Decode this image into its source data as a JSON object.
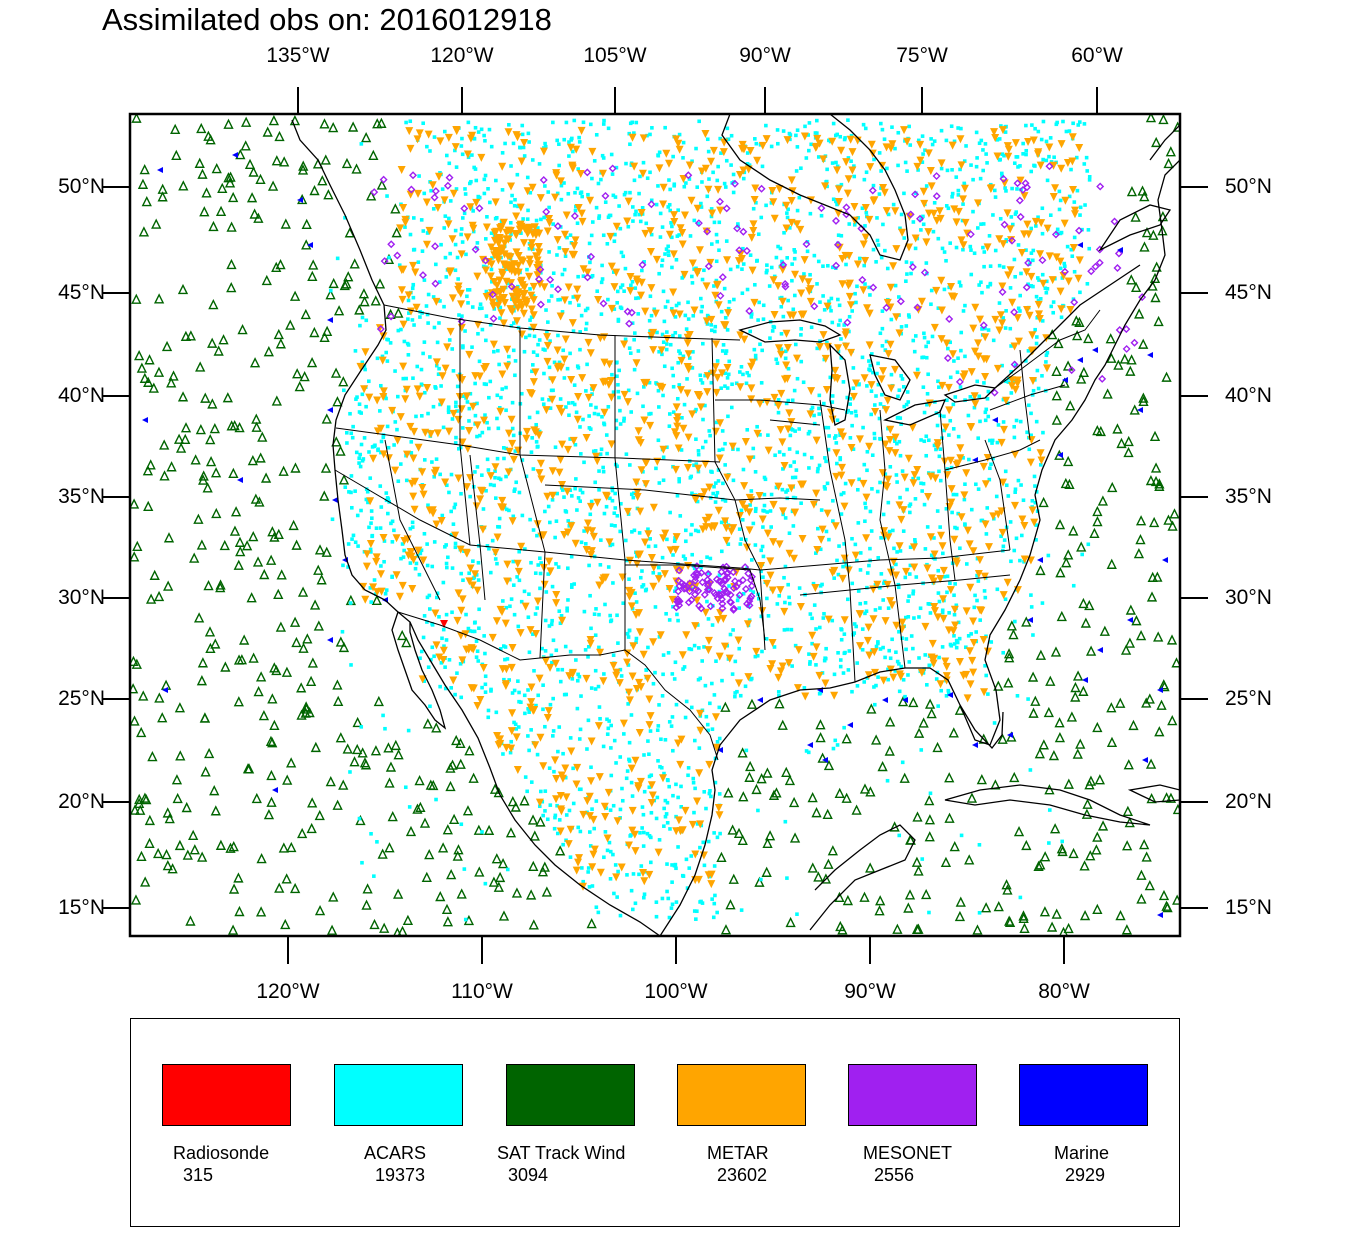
{
  "title": "Assimilated obs on: 2016012918",
  "top_lon_labels": [
    "135°W",
    "120°W",
    "105°W",
    "90°W",
    "75°W",
    "60°W"
  ],
  "bottom_lon_labels": [
    "120°W",
    "110°W",
    "100°W",
    "90°W",
    "80°W"
  ],
  "lat_labels": [
    "50°N",
    "45°N",
    "40°N",
    "35°N",
    "30°N",
    "25°N",
    "20°N",
    "15°N"
  ],
  "legend": [
    {
      "name": "Radiosonde",
      "count": "315",
      "color": "#ff0000"
    },
    {
      "name": "ACARS",
      "count": "19373",
      "color": "#00ffff"
    },
    {
      "name": "SAT Track Wind",
      "count": "3094",
      "color": "#006400"
    },
    {
      "name": "METAR",
      "count": "23602",
      "color": "#ffa500"
    },
    {
      "name": "MESONET",
      "count": "2556",
      "color": "#a020f0"
    },
    {
      "name": "Marine",
      "count": "2929",
      "color": "#0000ff"
    }
  ]
}
